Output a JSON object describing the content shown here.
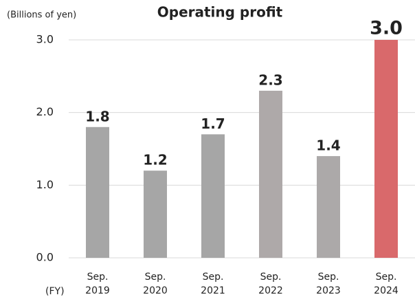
{
  "chart_data": {
    "type": "bar",
    "title": "Operating profit",
    "unit_label": "(Billions of yen)",
    "x_label": "(FY)",
    "categories": [
      [
        "Sep.",
        "2019"
      ],
      [
        "Sep.",
        "2020"
      ],
      [
        "Sep.",
        "2021"
      ],
      [
        "Sep.",
        "2022"
      ],
      [
        "Sep.",
        "2023"
      ],
      [
        "Sep.",
        "2024"
      ]
    ],
    "values": [
      1.8,
      1.2,
      1.7,
      2.3,
      1.4,
      3.0
    ],
    "value_labels": [
      "1.8",
      "1.2",
      "1.7",
      "2.3",
      "1.4",
      "3.0"
    ],
    "colors": [
      "#a6a6a6",
      "#a6a6a6",
      "#a6a6a6",
      "#aea9a9",
      "#aca9a9",
      "#d9696b"
    ],
    "ylim": [
      0,
      3
    ],
    "yticks": [
      {
        "value": 0,
        "label": "0.0"
      },
      {
        "value": 1,
        "label": "1.0"
      },
      {
        "value": 2,
        "label": "2.0"
      },
      {
        "value": 3,
        "label": "3.0"
      }
    ],
    "grid": true
  }
}
